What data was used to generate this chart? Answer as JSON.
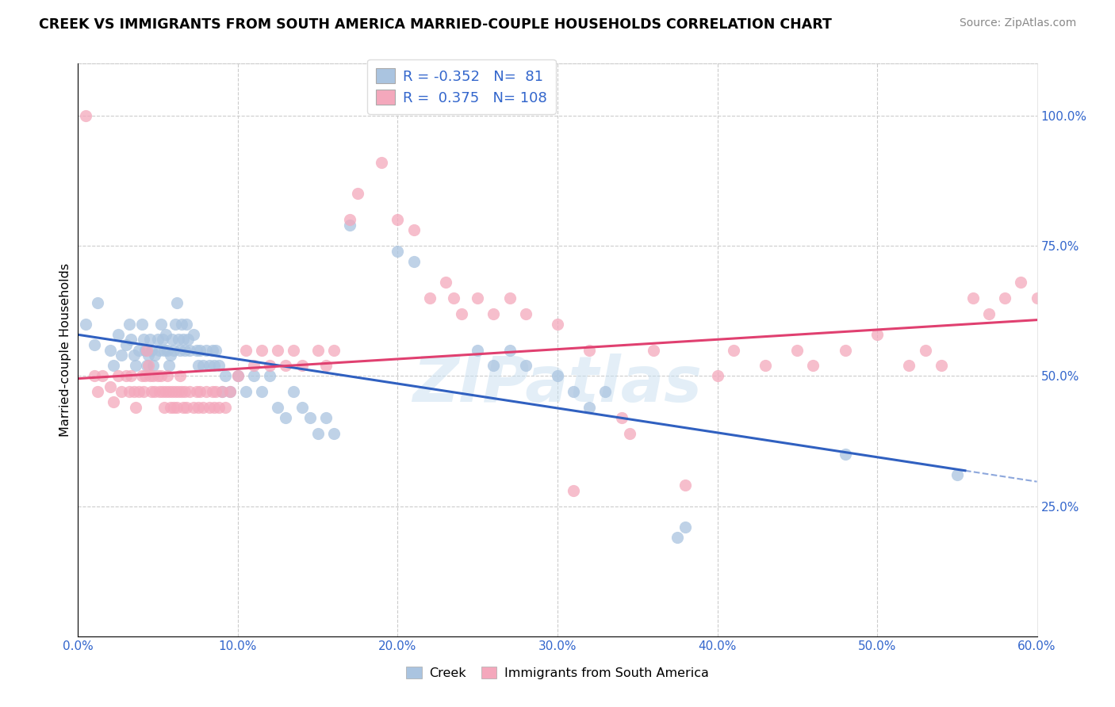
{
  "title": "CREEK VS IMMIGRANTS FROM SOUTH AMERICA MARRIED-COUPLE HOUSEHOLDS CORRELATION CHART",
  "source": "Source: ZipAtlas.com",
  "ylabel": "Married-couple Households",
  "watermark": "ZIPatlas",
  "legend_creek_R": "-0.352",
  "legend_creek_N": "81",
  "legend_imm_R": "0.375",
  "legend_imm_N": "108",
  "creek_color": "#aac4e0",
  "imm_color": "#f4a8bc",
  "creek_line_color": "#3060c0",
  "imm_line_color": "#e04070",
  "xlim": [
    0.0,
    0.6
  ],
  "ylim": [
    0.0,
    1.1
  ],
  "yticks": [
    0.25,
    0.5,
    0.75,
    1.0
  ],
  "ytick_labels": [
    "25.0%",
    "50.0%",
    "75.0%",
    "100.0%"
  ],
  "xticks": [
    0.0,
    0.1,
    0.2,
    0.3,
    0.4,
    0.5,
    0.6
  ],
  "xtick_labels": [
    "0.0%",
    "10.0%",
    "20.0%",
    "30.0%",
    "40.0%",
    "50.0%",
    "60.0%"
  ],
  "creek_scatter": [
    [
      0.005,
      0.6
    ],
    [
      0.01,
      0.56
    ],
    [
      0.012,
      0.64
    ],
    [
      0.02,
      0.55
    ],
    [
      0.022,
      0.52
    ],
    [
      0.025,
      0.58
    ],
    [
      0.027,
      0.54
    ],
    [
      0.03,
      0.56
    ],
    [
      0.032,
      0.6
    ],
    [
      0.033,
      0.57
    ],
    [
      0.035,
      0.54
    ],
    [
      0.036,
      0.52
    ],
    [
      0.038,
      0.55
    ],
    [
      0.04,
      0.6
    ],
    [
      0.041,
      0.57
    ],
    [
      0.042,
      0.55
    ],
    [
      0.043,
      0.52
    ],
    [
      0.044,
      0.54
    ],
    [
      0.045,
      0.57
    ],
    [
      0.046,
      0.55
    ],
    [
      0.047,
      0.52
    ],
    [
      0.048,
      0.54
    ],
    [
      0.05,
      0.57
    ],
    [
      0.051,
      0.55
    ],
    [
      0.052,
      0.6
    ],
    [
      0.053,
      0.57
    ],
    [
      0.054,
      0.55
    ],
    [
      0.055,
      0.58
    ],
    [
      0.056,
      0.55
    ],
    [
      0.057,
      0.52
    ],
    [
      0.058,
      0.54
    ],
    [
      0.059,
      0.57
    ],
    [
      0.06,
      0.55
    ],
    [
      0.061,
      0.6
    ],
    [
      0.062,
      0.64
    ],
    [
      0.063,
      0.57
    ],
    [
      0.064,
      0.55
    ],
    [
      0.065,
      0.6
    ],
    [
      0.066,
      0.57
    ],
    [
      0.067,
      0.55
    ],
    [
      0.068,
      0.6
    ],
    [
      0.069,
      0.57
    ],
    [
      0.07,
      0.55
    ],
    [
      0.072,
      0.58
    ],
    [
      0.074,
      0.55
    ],
    [
      0.075,
      0.52
    ],
    [
      0.076,
      0.55
    ],
    [
      0.078,
      0.52
    ],
    [
      0.08,
      0.55
    ],
    [
      0.082,
      0.52
    ],
    [
      0.084,
      0.55
    ],
    [
      0.085,
      0.52
    ],
    [
      0.086,
      0.55
    ],
    [
      0.088,
      0.52
    ],
    [
      0.09,
      0.47
    ],
    [
      0.092,
      0.5
    ],
    [
      0.095,
      0.47
    ],
    [
      0.1,
      0.5
    ],
    [
      0.105,
      0.47
    ],
    [
      0.11,
      0.5
    ],
    [
      0.115,
      0.47
    ],
    [
      0.12,
      0.5
    ],
    [
      0.125,
      0.44
    ],
    [
      0.13,
      0.42
    ],
    [
      0.135,
      0.47
    ],
    [
      0.14,
      0.44
    ],
    [
      0.145,
      0.42
    ],
    [
      0.15,
      0.39
    ],
    [
      0.155,
      0.42
    ],
    [
      0.16,
      0.39
    ],
    [
      0.17,
      0.79
    ],
    [
      0.2,
      0.74
    ],
    [
      0.21,
      0.72
    ],
    [
      0.25,
      0.55
    ],
    [
      0.26,
      0.52
    ],
    [
      0.27,
      0.55
    ],
    [
      0.28,
      0.52
    ],
    [
      0.3,
      0.5
    ],
    [
      0.31,
      0.47
    ],
    [
      0.32,
      0.44
    ],
    [
      0.33,
      0.47
    ],
    [
      0.375,
      0.19
    ],
    [
      0.38,
      0.21
    ],
    [
      0.48,
      0.35
    ],
    [
      0.55,
      0.31
    ]
  ],
  "imm_scatter": [
    [
      0.005,
      1.0
    ],
    [
      0.01,
      0.5
    ],
    [
      0.012,
      0.47
    ],
    [
      0.015,
      0.5
    ],
    [
      0.02,
      0.48
    ],
    [
      0.022,
      0.45
    ],
    [
      0.025,
      0.5
    ],
    [
      0.027,
      0.47
    ],
    [
      0.03,
      0.5
    ],
    [
      0.032,
      0.47
    ],
    [
      0.033,
      0.5
    ],
    [
      0.035,
      0.47
    ],
    [
      0.036,
      0.44
    ],
    [
      0.038,
      0.47
    ],
    [
      0.04,
      0.5
    ],
    [
      0.041,
      0.47
    ],
    [
      0.042,
      0.5
    ],
    [
      0.043,
      0.55
    ],
    [
      0.044,
      0.52
    ],
    [
      0.045,
      0.5
    ],
    [
      0.046,
      0.47
    ],
    [
      0.047,
      0.5
    ],
    [
      0.048,
      0.47
    ],
    [
      0.05,
      0.5
    ],
    [
      0.051,
      0.47
    ],
    [
      0.052,
      0.5
    ],
    [
      0.053,
      0.47
    ],
    [
      0.054,
      0.44
    ],
    [
      0.055,
      0.47
    ],
    [
      0.056,
      0.5
    ],
    [
      0.057,
      0.47
    ],
    [
      0.058,
      0.44
    ],
    [
      0.059,
      0.47
    ],
    [
      0.06,
      0.44
    ],
    [
      0.061,
      0.47
    ],
    [
      0.062,
      0.44
    ],
    [
      0.063,
      0.47
    ],
    [
      0.064,
      0.5
    ],
    [
      0.065,
      0.47
    ],
    [
      0.066,
      0.44
    ],
    [
      0.067,
      0.47
    ],
    [
      0.068,
      0.44
    ],
    [
      0.07,
      0.47
    ],
    [
      0.072,
      0.44
    ],
    [
      0.074,
      0.47
    ],
    [
      0.075,
      0.44
    ],
    [
      0.076,
      0.47
    ],
    [
      0.078,
      0.44
    ],
    [
      0.08,
      0.47
    ],
    [
      0.082,
      0.44
    ],
    [
      0.084,
      0.47
    ],
    [
      0.085,
      0.44
    ],
    [
      0.086,
      0.47
    ],
    [
      0.088,
      0.44
    ],
    [
      0.09,
      0.47
    ],
    [
      0.092,
      0.44
    ],
    [
      0.095,
      0.47
    ],
    [
      0.1,
      0.5
    ],
    [
      0.105,
      0.55
    ],
    [
      0.11,
      0.52
    ],
    [
      0.115,
      0.55
    ],
    [
      0.12,
      0.52
    ],
    [
      0.125,
      0.55
    ],
    [
      0.13,
      0.52
    ],
    [
      0.135,
      0.55
    ],
    [
      0.14,
      0.52
    ],
    [
      0.15,
      0.55
    ],
    [
      0.155,
      0.52
    ],
    [
      0.16,
      0.55
    ],
    [
      0.17,
      0.8
    ],
    [
      0.175,
      0.85
    ],
    [
      0.19,
      0.91
    ],
    [
      0.2,
      0.8
    ],
    [
      0.21,
      0.78
    ],
    [
      0.22,
      0.65
    ],
    [
      0.23,
      0.68
    ],
    [
      0.235,
      0.65
    ],
    [
      0.24,
      0.62
    ],
    [
      0.25,
      0.65
    ],
    [
      0.26,
      0.62
    ],
    [
      0.27,
      0.65
    ],
    [
      0.28,
      0.62
    ],
    [
      0.3,
      0.6
    ],
    [
      0.31,
      0.28
    ],
    [
      0.32,
      0.55
    ],
    [
      0.34,
      0.42
    ],
    [
      0.345,
      0.39
    ],
    [
      0.36,
      0.55
    ],
    [
      0.38,
      0.29
    ],
    [
      0.4,
      0.5
    ],
    [
      0.41,
      0.55
    ],
    [
      0.43,
      0.52
    ],
    [
      0.45,
      0.55
    ],
    [
      0.46,
      0.52
    ],
    [
      0.48,
      0.55
    ],
    [
      0.5,
      0.58
    ],
    [
      0.52,
      0.52
    ],
    [
      0.53,
      0.55
    ],
    [
      0.54,
      0.52
    ],
    [
      0.56,
      0.65
    ],
    [
      0.57,
      0.62
    ],
    [
      0.58,
      0.65
    ],
    [
      0.59,
      0.68
    ],
    [
      0.6,
      0.65
    ]
  ]
}
